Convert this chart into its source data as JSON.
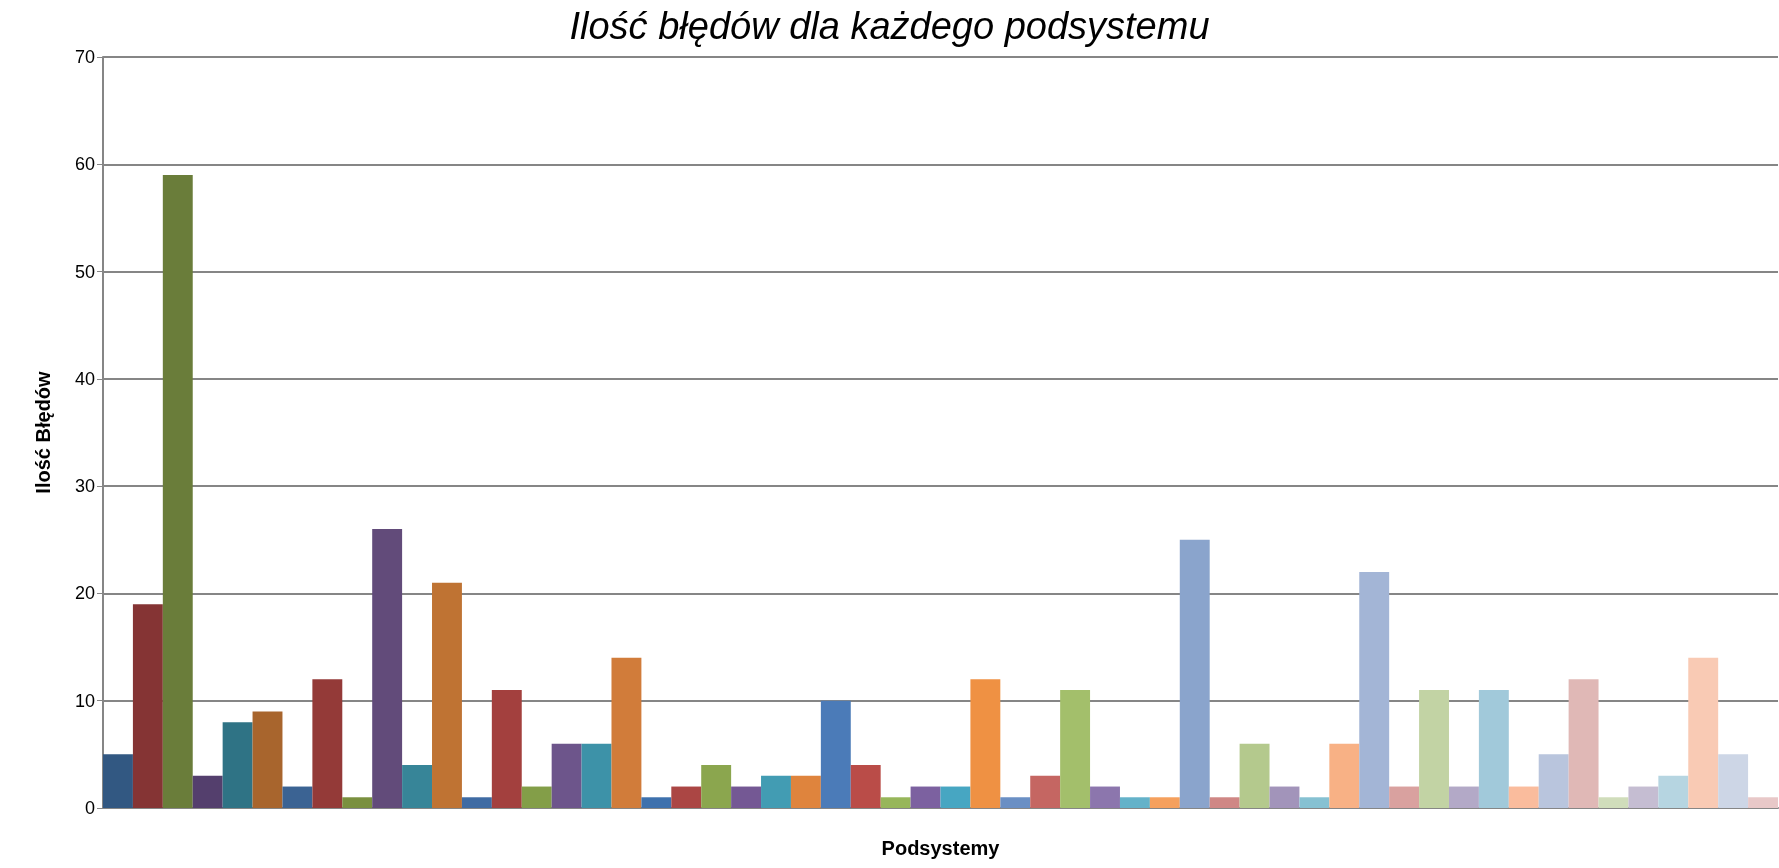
{
  "chart_data": {
    "type": "bar",
    "title": "Ilość błędów dla każdego podsystemu",
    "xlabel": "Podsystemy",
    "ylabel": "Ilość Błędów",
    "categories": [
      null,
      null,
      null,
      null,
      null,
      null,
      null,
      null,
      null,
      null,
      null,
      null,
      null,
      null,
      null,
      null,
      null,
      null,
      null,
      null,
      null,
      null,
      null,
      null,
      null,
      null,
      null,
      null,
      null,
      null,
      null,
      null,
      null,
      null,
      null,
      null,
      null,
      null,
      null,
      null,
      null,
      null,
      null,
      null,
      null,
      null,
      null,
      null,
      null,
      null,
      null,
      null,
      null,
      null,
      null,
      null
    ],
    "values": [
      5,
      19,
      59,
      3,
      8,
      9,
      2,
      12,
      1,
      26,
      4,
      21,
      1,
      11,
      2,
      6,
      6,
      14,
      1,
      2,
      4,
      2,
      3,
      3,
      10,
      4,
      1,
      2,
      2,
      12,
      1,
      3,
      11,
      2,
      1,
      1,
      25,
      1,
      6,
      2,
      1,
      6,
      22,
      2,
      11,
      2,
      11,
      2,
      5,
      12,
      1,
      2,
      3,
      14,
      5,
      1
    ],
    "colors": [
      "#325882",
      "#853434",
      "#6a7d3a",
      "#543f6d",
      "#2f7385",
      "#a8652d",
      "#3b6393",
      "#943a38",
      "#7a903f",
      "#624b7a",
      "#378598",
      "#bf7333",
      "#3f6ba3",
      "#a3403e",
      "#839e48",
      "#6d558b",
      "#3d92a8",
      "#d17c3a",
      "#3e71ad",
      "#ab4644",
      "#8ba64e",
      "#745894",
      "#429cb3",
      "#df843d",
      "#4b7bb8",
      "#ba4c48",
      "#97b65a",
      "#7c61a0",
      "#47a6c2",
      "#ef9143",
      "#6a8fc4",
      "#c56662",
      "#a3bf6b",
      "#8c76ad",
      "#64b2c9",
      "#f5a05d",
      "#8aa4cc",
      "#cf8785",
      "#b4c98d",
      "#a294ba",
      "#86c1d2",
      "#f8b185",
      "#a3b5d6",
      "#d9a19f",
      "#c2d3a4",
      "#b3a9c7",
      "#a1c9da",
      "#fabc9d",
      "#b9c5dd",
      "#e0b8b6",
      "#d0ddbb",
      "#c5bdd2",
      "#b6d5e1",
      "#f9cab4",
      "#cdd6e6",
      "#e8c8c8"
    ],
    "ylim": [
      0,
      70
    ],
    "yticks": [
      0,
      10,
      20,
      30,
      40,
      50,
      60,
      70
    ],
    "grid": "y"
  }
}
